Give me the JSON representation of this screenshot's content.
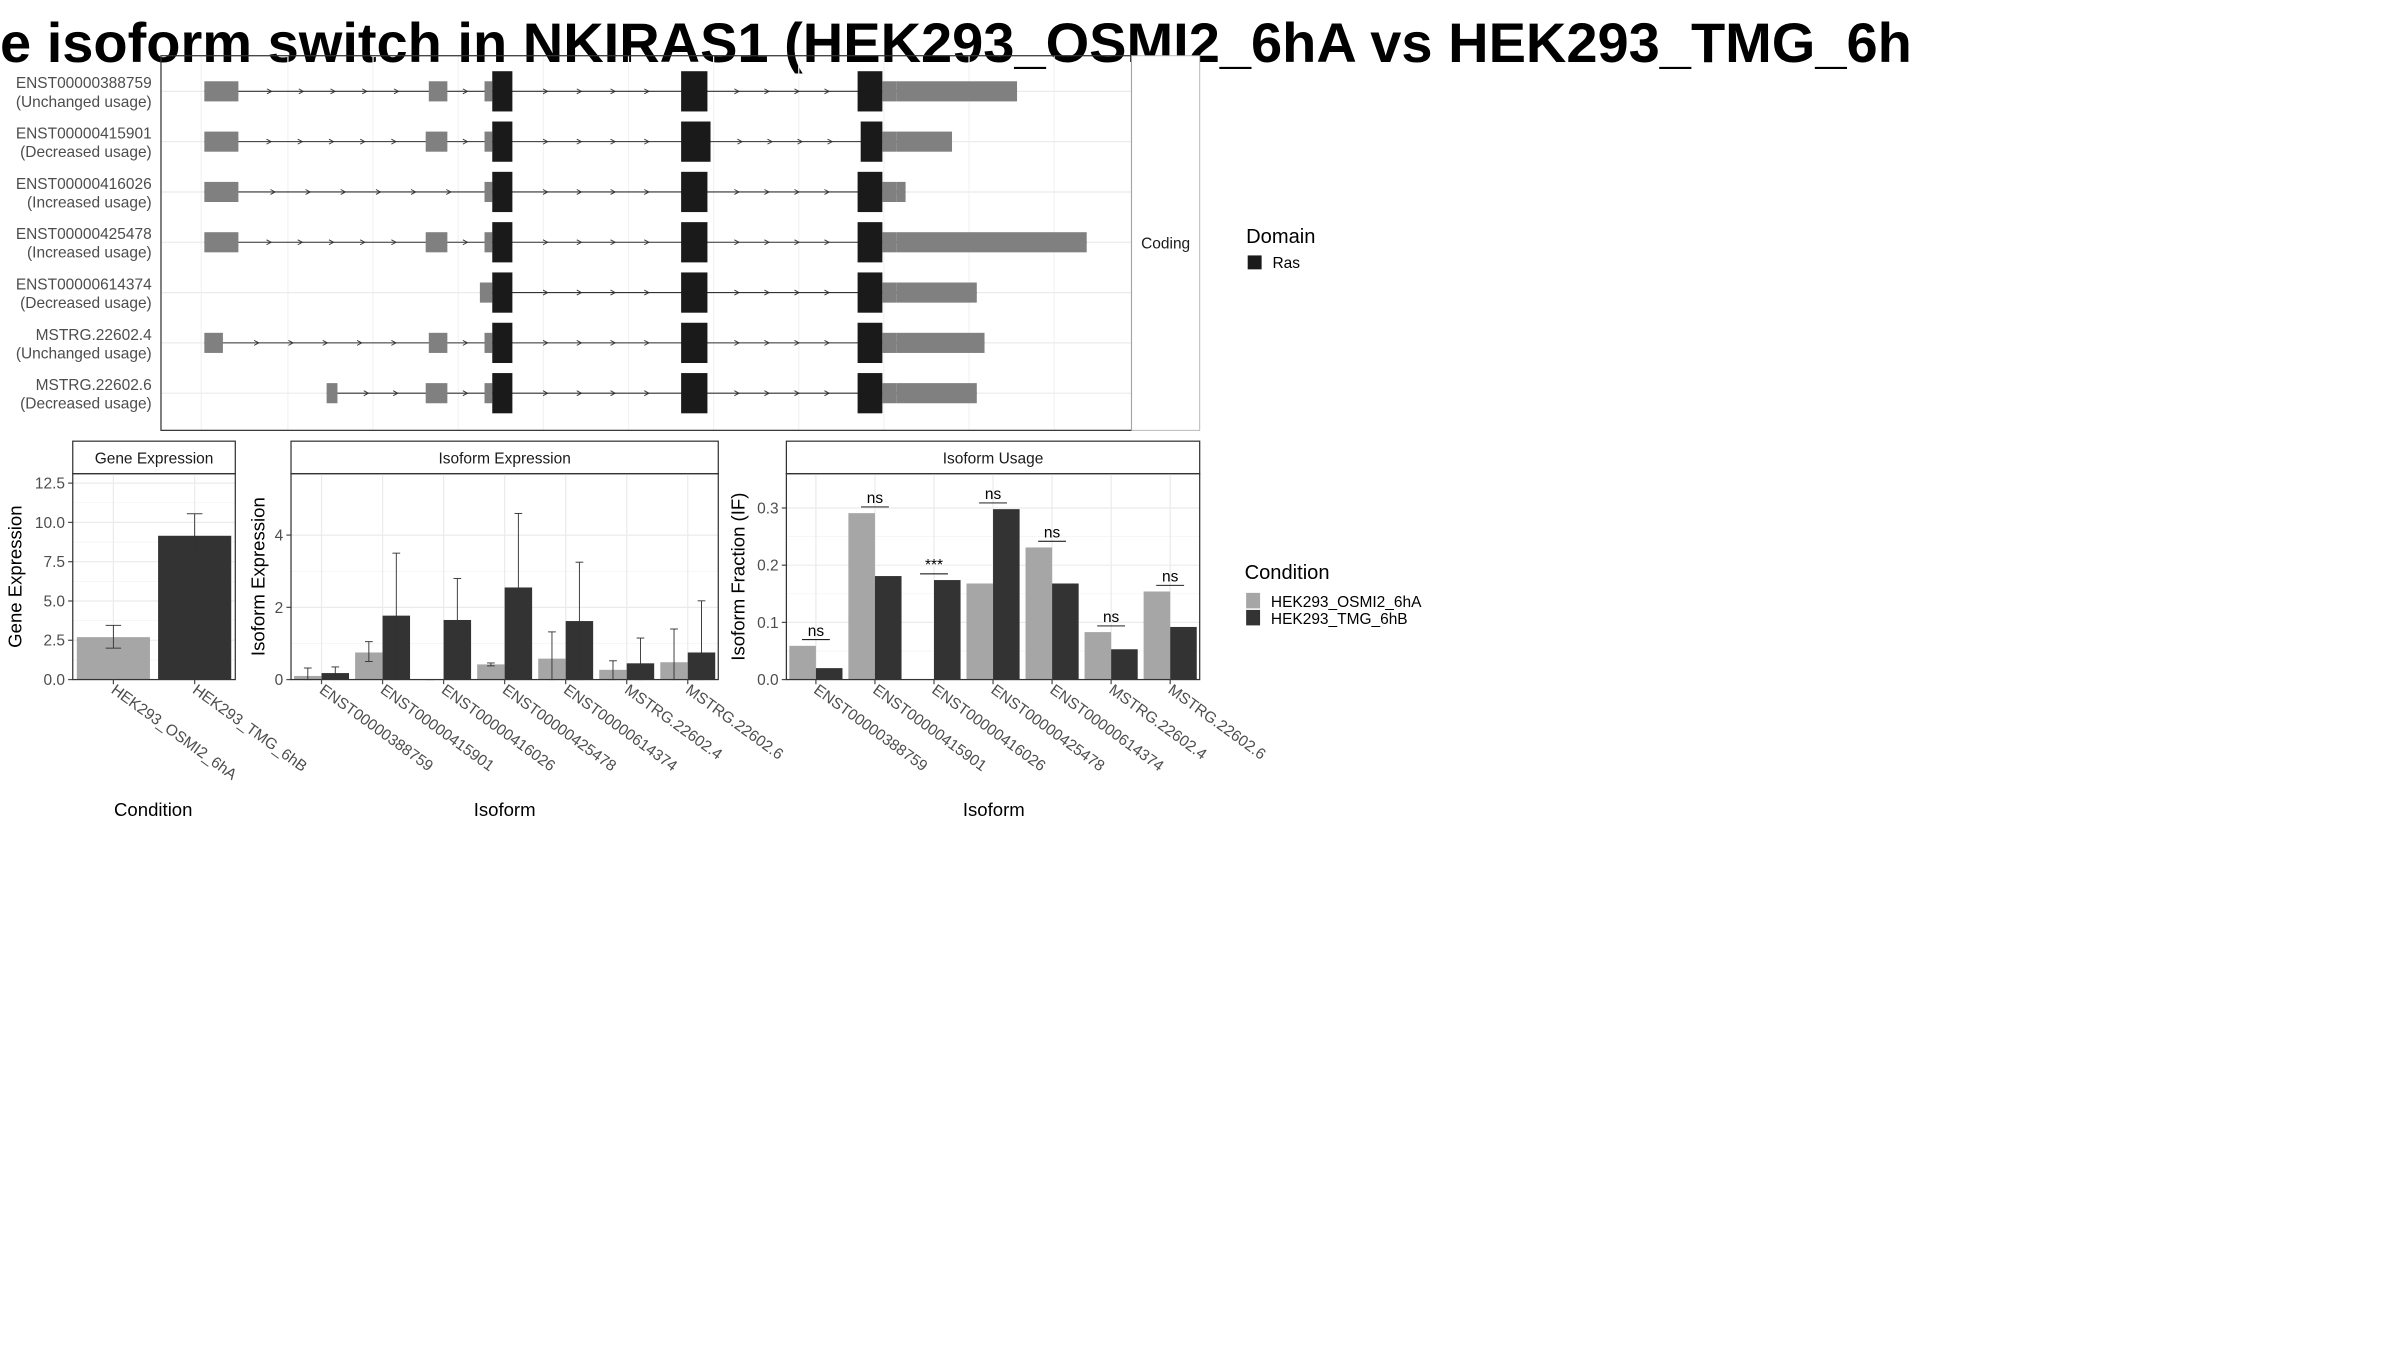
{
  "title": "e isoform switch in NKIRAS1 (HEK293_OSMI2_6hA vs HEK293_TMG_6h",
  "structure": {
    "strip_label": "Coding",
    "isoforms": [
      {
        "id": "ENST00000388759",
        "usage": "(Unchanged usage)"
      },
      {
        "id": "ENST00000415901",
        "usage": "(Decreased usage)"
      },
      {
        "id": "ENST00000416026",
        "usage": "(Increased usage)"
      },
      {
        "id": "ENST00000425478",
        "usage": "(Increased usage)"
      },
      {
        "id": "ENST00000614374",
        "usage": "(Decreased usage)"
      },
      {
        "id": "MSTRG.22602.4",
        "usage": "(Unchanged usage)"
      },
      {
        "id": "MSTRG.22602.6",
        "usage": "(Decreased usage)"
      }
    ]
  },
  "legend_domain": {
    "title": "Domain",
    "items": [
      {
        "label": "Ras",
        "color": "#1a1a1a"
      }
    ]
  },
  "legend_condition": {
    "title": "Condition",
    "items": [
      {
        "label": "HEK293_OSMI2_6hA",
        "color": "#a6a6a6"
      },
      {
        "label": "HEK293_TMG_6hB",
        "color": "#333333"
      }
    ]
  },
  "chart_data": [
    {
      "type": "bar",
      "title": "Gene Expression",
      "xlabel": "Condition",
      "ylabel": "Gene Expression",
      "categories": [
        "HEK293_OSMI2_6hA",
        "HEK293_TMG_6hB"
      ],
      "values": [
        2.7,
        9.15
      ],
      "errors": [
        [
          2.0,
          3.45
        ],
        [
          7.75,
          10.55
        ]
      ],
      "ylim": [
        0,
        13.1
      ],
      "yticks": [
        "0.0",
        "2.5",
        "5.0",
        "7.5",
        "10.0",
        "12.5"
      ]
    },
    {
      "type": "bar",
      "title": "Isoform Expression",
      "xlabel": "Isoform",
      "ylabel": "Isoform Expression",
      "categories": [
        "ENST00000388759",
        "ENST00000415901",
        "ENST00000416026",
        "ENST00000425478",
        "ENST00000614374",
        "MSTRG.22602.4",
        "MSTRG.22602.6"
      ],
      "series": [
        {
          "name": "HEK293_OSMI2_6hA",
          "values": [
            0.1,
            0.75,
            0.0,
            0.42,
            0.58,
            0.27,
            0.48
          ],
          "errors": [
            [
              0.0,
              0.32
            ],
            [
              0.5,
              1.05
            ],
            [
              0.0,
              0.0
            ],
            [
              0.38,
              0.46
            ],
            [
              0.0,
              1.32
            ],
            [
              0.0,
              0.52
            ],
            [
              0.0,
              1.4
            ]
          ]
        },
        {
          "name": "HEK293_TMG_6hB",
          "values": [
            0.18,
            1.77,
            1.65,
            2.55,
            1.62,
            0.45,
            0.75
          ],
          "errors": [
            [
              0.05,
              0.35
            ],
            [
              0.0,
              3.5
            ],
            [
              0.5,
              2.8
            ],
            [
              0.45,
              4.6
            ],
            [
              0.0,
              3.25
            ],
            [
              0.0,
              1.15
            ],
            [
              0.0,
              2.18
            ]
          ]
        }
      ],
      "ylim": [
        0,
        5.7
      ],
      "yticks": [
        "0",
        "2",
        "4"
      ]
    },
    {
      "type": "bar",
      "title": "Isoform Usage",
      "xlabel": "Isoform",
      "ylabel": "Isoform Fraction (IF)",
      "categories": [
        "ENST00000388759",
        "ENST00000415901",
        "ENST00000416026",
        "ENST00000425478",
        "ENST00000614374",
        "MSTRG.22602.4",
        "MSTRG.22602.6"
      ],
      "series": [
        {
          "name": "HEK293_OSMI2_6hA",
          "values": [
            0.059,
            0.291,
            0.0,
            0.168,
            0.231,
            0.083,
            0.154
          ]
        },
        {
          "name": "HEK293_TMG_6hB",
          "values": [
            0.02,
            0.181,
            0.174,
            0.298,
            0.168,
            0.053,
            0.092
          ]
        }
      ],
      "significance": [
        "ns",
        "ns",
        "***",
        "ns",
        "ns",
        "ns",
        "ns"
      ],
      "ylim": [
        0,
        0.36
      ],
      "yticks": [
        "0.0",
        "0.1",
        "0.2",
        "0.3"
      ]
    }
  ]
}
